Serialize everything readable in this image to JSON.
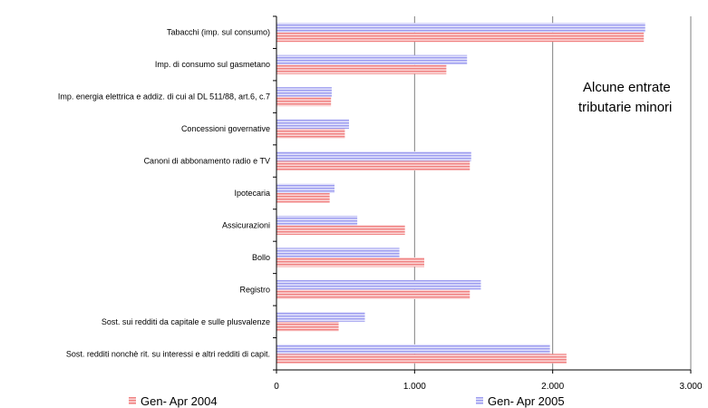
{
  "chart_data": {
    "type": "bar",
    "orientation": "horizontal",
    "title_lines": [
      "Alcune  entrate",
      "tributarie minori"
    ],
    "categories": [
      "Tabacchi (imp. sul consumo)",
      "Imp. di consumo sul gasmetano",
      "Imp. energia elettrica e addiz. di cui al DL 511/88, art.6, c.7",
      "Concessioni governative",
      "Canoni di abbonamento radio e TV",
      "Ipotecaria",
      "Assicurazioni",
      "Bollo",
      "Registro",
      "Sost. sui redditi da capitale e sulle plusvalenze",
      "Sost. redditi nonchè rit. su interessi e altri redditi di capit."
    ],
    "series": [
      {
        "name": "Gen- Apr 2004",
        "color": "#f08080",
        "values": [
          2660,
          1230,
          395,
          495,
          1400,
          385,
          930,
          1070,
          1400,
          450,
          2100
        ]
      },
      {
        "name": "Gen- Apr 2005",
        "color": "#9c9cf0",
        "values": [
          2670,
          1380,
          400,
          525,
          1410,
          420,
          585,
          890,
          1480,
          640,
          1980
        ]
      }
    ],
    "x_ticks": [
      "0",
      "1.000",
      "2.000",
      "3.000"
    ],
    "xlim": [
      0,
      3000
    ],
    "grid": "vertical",
    "legend_position": "bottom"
  }
}
